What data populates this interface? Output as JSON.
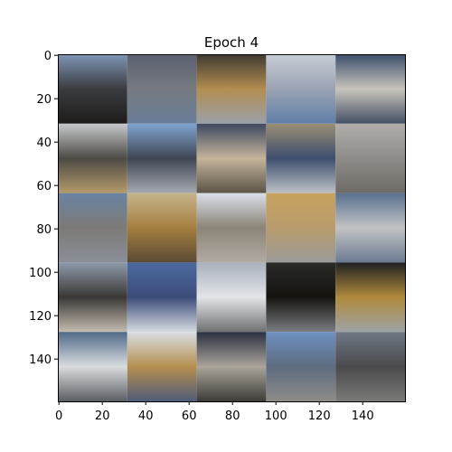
{
  "chart_data": {
    "type": "heatmap",
    "title": "Epoch 4",
    "xlabel": "",
    "ylabel": "",
    "xlim": [
      0,
      160
    ],
    "ylim": [
      160,
      0
    ],
    "xticks": [
      "0",
      "20",
      "40",
      "60",
      "80",
      "100",
      "120",
      "140"
    ],
    "yticks": [
      "0",
      "20",
      "40",
      "60",
      "80",
      "100",
      "120",
      "140"
    ],
    "grid": false,
    "legend": "none",
    "tile_grid": {
      "rows": 5,
      "cols": 5,
      "tile_size": 32,
      "tiles": [
        {
          "row": 0,
          "col": 0,
          "top": "#7f95b5",
          "mid": "#3a3c40",
          "bottom": "#1e1c1a"
        },
        {
          "row": 0,
          "col": 1,
          "top": "#5b6070",
          "mid": "#767a80",
          "bottom": "#6a7d99"
        },
        {
          "row": 0,
          "col": 2,
          "top": "#3e3a30",
          "mid": "#b38d52",
          "bottom": "#9aa0a8"
        },
        {
          "row": 0,
          "col": 3,
          "top": "#c7cdd6",
          "mid": "#9aa3b4",
          "bottom": "#5f7ea8"
        },
        {
          "row": 0,
          "col": 4,
          "top": "#3c4e6c",
          "mid": "#c8c4bc",
          "bottom": "#435064"
        },
        {
          "row": 1,
          "col": 0,
          "top": "#c6c8cb",
          "mid": "#4d4a45",
          "bottom": "#b49a6a"
        },
        {
          "row": 1,
          "col": 1,
          "top": "#7fa4d0",
          "mid": "#3f4653",
          "bottom": "#a5a9b0"
        },
        {
          "row": 1,
          "col": 2,
          "top": "#3e4a60",
          "mid": "#c4b49a",
          "bottom": "#5b5346"
        },
        {
          "row": 1,
          "col": 3,
          "top": "#9a8e74",
          "mid": "#3d4e6e",
          "bottom": "#bcc1c6"
        },
        {
          "row": 1,
          "col": 4,
          "top": "#b0adaa",
          "mid": "#8e8c88",
          "bottom": "#6f6b66"
        },
        {
          "row": 2,
          "col": 0,
          "top": "#6a83a3",
          "mid": "#7c7a77",
          "bottom": "#8a8f98"
        },
        {
          "row": 2,
          "col": 1,
          "top": "#c6b48a",
          "mid": "#a57f40",
          "bottom": "#5a4a35"
        },
        {
          "row": 2,
          "col": 2,
          "top": "#d9dfe8",
          "mid": "#8b8478",
          "bottom": "#b1aba2"
        },
        {
          "row": 2,
          "col": 3,
          "top": "#c7a25f",
          "mid": "#b89c6d",
          "bottom": "#9b9a99"
        },
        {
          "row": 2,
          "col": 4,
          "top": "#59708f",
          "mid": "#c1c3c4",
          "bottom": "#6a7a90"
        },
        {
          "row": 3,
          "col": 0,
          "top": "#8e9aaa",
          "mid": "#3a3836",
          "bottom": "#c5bcb0"
        },
        {
          "row": 3,
          "col": 1,
          "top": "#4c6aa0",
          "mid": "#3c4c78",
          "bottom": "#d6dbe2"
        },
        {
          "row": 3,
          "col": 2,
          "top": "#a9b1bc",
          "mid": "#e2e4e8",
          "bottom": "#6f7072"
        },
        {
          "row": 3,
          "col": 3,
          "top": "#2a2a28",
          "mid": "#15140f",
          "bottom": "#7a7d80"
        },
        {
          "row": 3,
          "col": 4,
          "top": "#1f2122",
          "mid": "#b08a3c",
          "bottom": "#9ea3a6"
        },
        {
          "row": 4,
          "col": 0,
          "top": "#4f6a88",
          "mid": "#d9dcdf",
          "bottom": "#5a5e62"
        },
        {
          "row": 4,
          "col": 1,
          "top": "#d9dde2",
          "mid": "#b58f50",
          "bottom": "#4f5c78"
        },
        {
          "row": 4,
          "col": 2,
          "top": "#2a3040",
          "mid": "#aaa49a",
          "bottom": "#3e3c38"
        },
        {
          "row": 4,
          "col": 3,
          "top": "#6e90c2",
          "mid": "#5d6c80",
          "bottom": "#8e8c88"
        },
        {
          "row": 4,
          "col": 4,
          "top": "#6f7884",
          "mid": "#4a4a4c",
          "bottom": "#7a7a78"
        }
      ]
    }
  }
}
